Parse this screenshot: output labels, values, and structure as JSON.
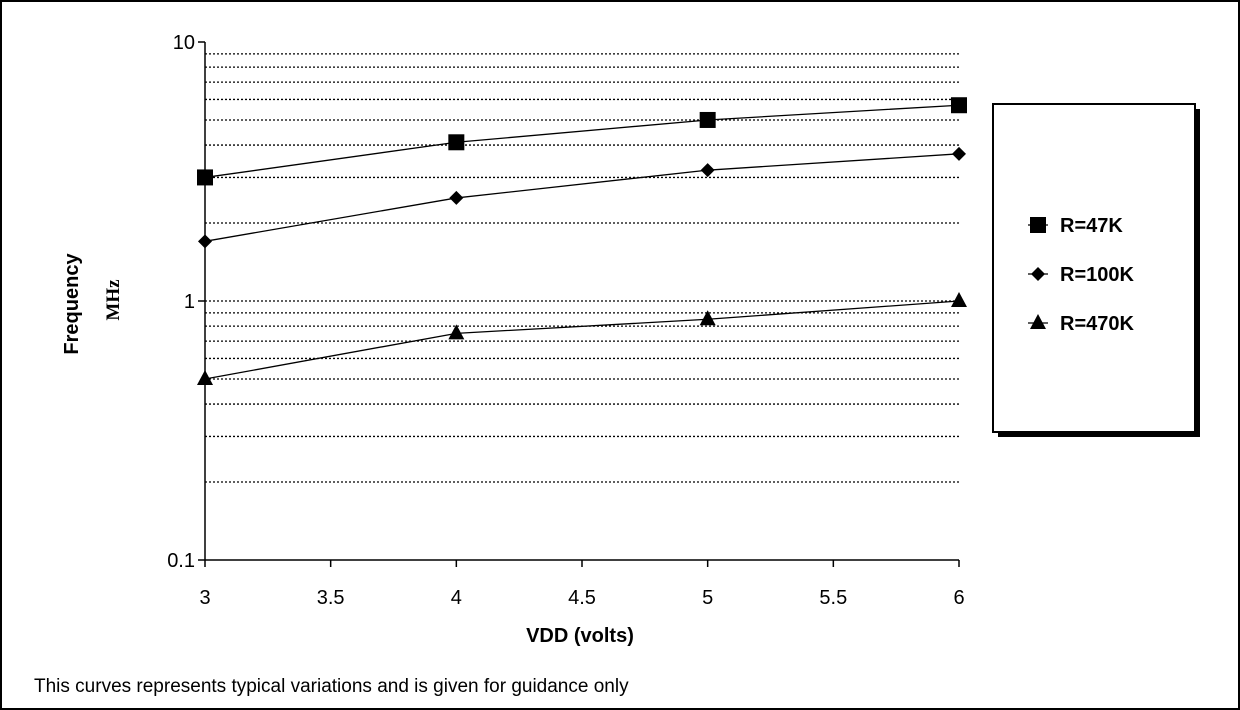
{
  "chart_data": {
    "type": "line",
    "xlabel": "VDD (volts)",
    "ylabel_lines": [
      "Frequency",
      "MHz"
    ],
    "xlim": [
      3,
      6
    ],
    "ylim": [
      0.1,
      10
    ],
    "y_scale": "log",
    "x_ticks": [
      3,
      3.5,
      4,
      4.5,
      5,
      5.5,
      6
    ],
    "x_tick_labels": [
      "3",
      "3.5",
      "4",
      "4.5",
      "5",
      "5.5",
      "6"
    ],
    "y_tick_values": [
      0.1,
      1,
      10
    ],
    "y_tick_labels": [
      "0.1",
      "1",
      "10"
    ],
    "grid": "dotted horizontal at log minor/major lines",
    "legend_position": "right",
    "x": [
      3,
      4,
      5,
      6
    ],
    "series": [
      {
        "name": "R=47K",
        "marker": "square",
        "values": [
          3.0,
          4.1,
          5.0,
          5.7
        ]
      },
      {
        "name": "R=100K",
        "marker": "diamond",
        "values": [
          1.7,
          2.5,
          3.2,
          3.7
        ]
      },
      {
        "name": "R=470K",
        "marker": "triangle",
        "values": [
          0.5,
          0.75,
          0.85,
          1.0
        ]
      }
    ],
    "note": "This curves represents typical variations and is given for guidance only"
  }
}
